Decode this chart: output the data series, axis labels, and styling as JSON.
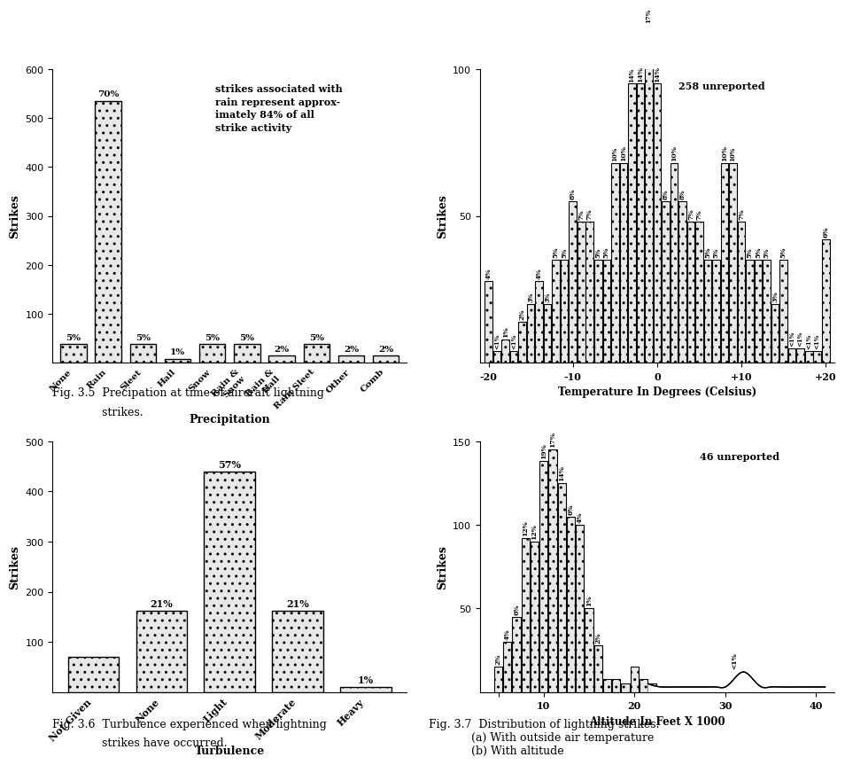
{
  "fig35": {
    "categories": [
      "None",
      "Rain",
      "Sleet",
      "Hail",
      "Snow",
      "Rain &\nSnow",
      "Rain &\nHail",
      "Rain Sleet",
      "Other",
      "Comb"
    ],
    "values": [
      38,
      535,
      38,
      8,
      38,
      38,
      15,
      38,
      15,
      15
    ],
    "pcts": [
      "5%",
      "70%",
      "5%",
      "1%",
      "5%",
      "5%",
      "2%",
      "5%",
      "2%",
      "2%"
    ],
    "ylabel": "Strikes",
    "xlabel": "Precipitation",
    "ylim": [
      0,
      600
    ],
    "yticks": [
      100,
      200,
      300,
      400,
      500,
      600
    ],
    "annotation": "strikes associated with\nrain represent approx-\nimately 84% of all\nstrike activity",
    "caption1": "Fig. 3.5  Precipation at time of aircraft lightning",
    "caption2": "              strikes."
  },
  "fig36": {
    "categories": [
      "Not Given",
      "None",
      "Light",
      "Moderate",
      "Heavy"
    ],
    "values": [
      70,
      162,
      440,
      162,
      10
    ],
    "pcts": [
      "",
      "21%",
      "57%",
      "21%",
      "1%"
    ],
    "ylabel": "Strikes",
    "xlabel": "Turbulence",
    "ylim": [
      0,
      500
    ],
    "yticks": [
      100,
      200,
      300,
      400,
      500
    ],
    "caption1": "Fig. 3.6  Turbulence experienced when lightning",
    "caption2": "              strikes have occurred."
  },
  "fig37a": {
    "temp_values": [
      -20,
      -19,
      -18,
      -17,
      -16,
      -15,
      -14,
      -13,
      -12,
      -11,
      -10,
      -9,
      -8,
      -7,
      -6,
      -5,
      -4,
      -3,
      -2,
      -1,
      0,
      1,
      2,
      3,
      4,
      5,
      6,
      7,
      8,
      9,
      10,
      11,
      12,
      13,
      14,
      15,
      16,
      17,
      18,
      19,
      20
    ],
    "values": [
      28,
      4,
      8,
      4,
      14,
      20,
      28,
      20,
      35,
      35,
      55,
      48,
      48,
      35,
      35,
      68,
      68,
      95,
      95,
      115,
      95,
      55,
      68,
      55,
      48,
      48,
      35,
      35,
      68,
      68,
      48,
      35,
      35,
      35,
      20,
      35,
      5,
      5,
      4,
      4,
      42
    ],
    "pcts_map": {
      "-20": "4%",
      "-19": "<1%",
      "-18": "1%",
      "-17": "<1%",
      "-16": "2%",
      "-15": "3%",
      "-14": "4%",
      "-13": "3%",
      "-12": "5%",
      "-11": "5%",
      "-10": "8%",
      "-9": "7%",
      "-8": "7%",
      "-7": "5%",
      "-6": "5%",
      "-5": "10%",
      "-4": "10%",
      "-3": "14%",
      "-2": "14%",
      "-1": "17%",
      "0": "14%",
      "1": "8%",
      "2": "10%",
      "3": "8%",
      "4": "7%",
      "5": "7%",
      "6": "5%",
      "7": "5%",
      "8": "10%",
      "9": "10%",
      "10": "7%",
      "11": "5%",
      "12": "5%",
      "13": "5%",
      "14": "3%",
      "15": "5%",
      "16": "<1%",
      "17": "<1%",
      "18": "<1%",
      "19": "<1%",
      "20": "6%"
    },
    "ylabel": "Strikes",
    "xlabel": "Temperature In Degrees (Celsius)",
    "ylim": [
      0,
      100
    ],
    "yticks": [
      50,
      100
    ],
    "annotation": "258 unreported",
    "xticks": [
      -20,
      -10,
      0,
      10,
      20
    ],
    "xtick_labels": [
      "-20",
      "-10",
      "0",
      "+10",
      "+20"
    ]
  },
  "fig37b": {
    "alt_values": [
      5,
      6,
      7,
      8,
      9,
      10,
      11,
      12,
      13,
      14,
      15,
      16,
      17,
      18,
      19,
      20,
      21,
      22
    ],
    "values": [
      15,
      30,
      45,
      92,
      90,
      138,
      145,
      125,
      105,
      100,
      50,
      28,
      8,
      8,
      5,
      15,
      8,
      5
    ],
    "pcts_map": {
      "5": "2%",
      "6": "4%",
      "7": "6%",
      "8": "12%",
      "9": "12%",
      "10": "19%",
      "11": "17%",
      "12": "14%",
      "13": "6%",
      "14": "4%",
      "15": "1%",
      "16": "2%",
      "30": "<1%"
    },
    "ylabel": "Strikes",
    "xlabel": "Altitude In Feet X 1000",
    "ylim": [
      0,
      150
    ],
    "yticks": [
      50,
      100,
      150
    ],
    "annotation": "46 unreported",
    "xticks": [
      5,
      10,
      20,
      30,
      40
    ],
    "xtick_labels": [
      "",
      "10",
      "20",
      "30",
      "40"
    ],
    "wave_x": [
      21.5,
      22,
      23,
      24,
      25,
      26,
      27,
      28,
      29,
      30,
      31,
      32,
      33,
      34,
      35,
      36,
      37,
      38,
      39,
      40,
      41
    ],
    "wave_y": [
      5,
      4,
      3,
      3,
      3,
      3,
      3,
      3,
      3,
      3,
      8,
      12,
      8,
      3,
      3,
      3,
      3,
      3,
      3,
      3,
      3
    ]
  },
  "fig37_caption": "Fig. 3.7  Distribution of lightning strikes.\n            (a) With outside air temperature\n            (b) With altitude",
  "bg_color": "#ffffff",
  "bar_color": "#e8e8e8",
  "bar_edge": "#000000",
  "font_family": "DejaVu Serif"
}
